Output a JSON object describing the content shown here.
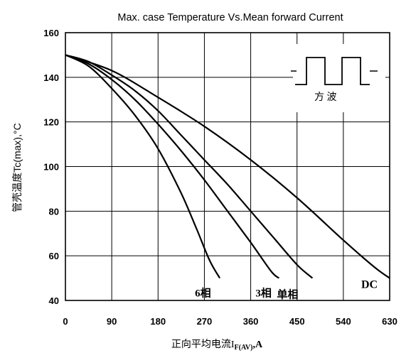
{
  "chart_data": {
    "type": "line",
    "title": "Max. case Temperature Vs.Mean forward Current",
    "ylabel": "管壳温度Tc(max),°C",
    "xlabel": {
      "main": "正向平均电流I",
      "subscript": "F(AV)",
      "suffix": ",A"
    },
    "xlim": [
      0,
      630
    ],
    "ylim": [
      40,
      160
    ],
    "x_ticks": [
      0,
      90,
      180,
      270,
      360,
      450,
      540,
      630
    ],
    "y_ticks": [
      40,
      60,
      80,
      100,
      120,
      140,
      160
    ],
    "x_tick_labels": [
      "0",
      "90",
      "180",
      "270",
      "360",
      "450",
      "540",
      "630"
    ],
    "y_tick_labels": [
      "40",
      "60",
      "80",
      "100",
      "120",
      "140",
      "160"
    ],
    "grid": true,
    "series": [
      {
        "name": "6相",
        "points": [
          [
            0,
            150
          ],
          [
            45,
            145
          ],
          [
            90,
            135
          ],
          [
            135,
            123
          ],
          [
            180,
            108
          ],
          [
            225,
            88
          ],
          [
            255,
            72
          ],
          [
            280,
            58
          ],
          [
            300,
            50
          ]
        ]
      },
      {
        "name": "3相",
        "points": [
          [
            0,
            150
          ],
          [
            45,
            146
          ],
          [
            90,
            139
          ],
          [
            135,
            130
          ],
          [
            180,
            119
          ],
          [
            225,
            107
          ],
          [
            270,
            94
          ],
          [
            315,
            80
          ],
          [
            360,
            66
          ],
          [
            400,
            53
          ],
          [
            415,
            50
          ]
        ]
      },
      {
        "name": "单相",
        "points": [
          [
            0,
            150
          ],
          [
            45,
            147
          ],
          [
            90,
            141
          ],
          [
            135,
            134
          ],
          [
            180,
            125
          ],
          [
            225,
            114
          ],
          [
            270,
            103
          ],
          [
            315,
            92
          ],
          [
            360,
            80
          ],
          [
            405,
            68
          ],
          [
            450,
            56
          ],
          [
            480,
            50
          ]
        ]
      },
      {
        "name": "DC",
        "points": [
          [
            0,
            150
          ],
          [
            90,
            143
          ],
          [
            180,
            131
          ],
          [
            270,
            118
          ],
          [
            360,
            103
          ],
          [
            450,
            86
          ],
          [
            540,
            67
          ],
          [
            600,
            55
          ],
          [
            630,
            50
          ]
        ]
      }
    ],
    "inset": {
      "label": "方  波"
    }
  }
}
